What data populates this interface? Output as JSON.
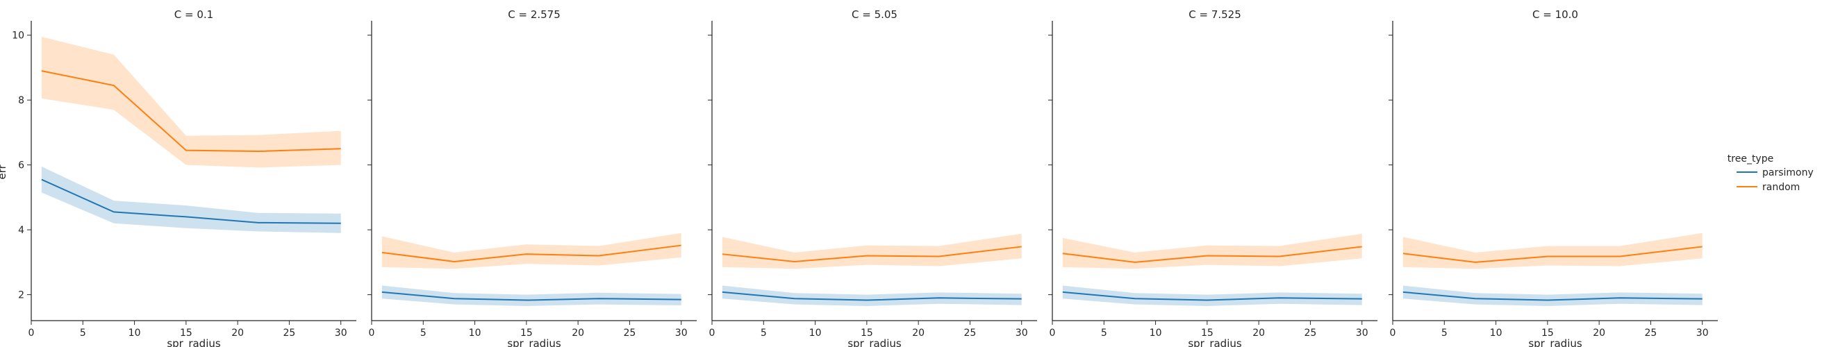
{
  "chart_data": {
    "type": "line",
    "facet_by": "C",
    "xlabel": "spr_radius",
    "ylabel": "err",
    "xlim": [
      0,
      31.5
    ],
    "ylim": [
      1.2,
      10.4
    ],
    "xticks": [
      0,
      5,
      10,
      15,
      20,
      25,
      30
    ],
    "yticks": [
      2,
      4,
      6,
      8,
      10
    ],
    "legend": {
      "title": "tree_type",
      "placement": "right",
      "entries": [
        "parsimony",
        "random"
      ]
    },
    "colors": {
      "parsimony": "#1f77b4",
      "random": "#ff7f0e"
    },
    "x": [
      1,
      8,
      15,
      22,
      30
    ],
    "panels": [
      {
        "title": "C = 0.1",
        "series": [
          {
            "name": "parsimony",
            "values": [
              5.55,
              4.55,
              4.4,
              4.22,
              4.2
            ],
            "ci_low": [
              5.15,
              4.2,
              4.05,
              3.95,
              3.9
            ],
            "ci_high": [
              5.95,
              4.9,
              4.75,
              4.52,
              4.5
            ]
          },
          {
            "name": "random",
            "values": [
              8.9,
              8.45,
              6.45,
              6.42,
              6.5
            ],
            "ci_low": [
              8.05,
              7.7,
              6.0,
              5.92,
              6.0
            ],
            "ci_high": [
              9.95,
              9.4,
              6.9,
              6.92,
              7.05
            ]
          }
        ]
      },
      {
        "title": "C = 2.575",
        "series": [
          {
            "name": "parsimony",
            "values": [
              2.08,
              1.88,
              1.83,
              1.88,
              1.85
            ],
            "ci_low": [
              1.88,
              1.7,
              1.65,
              1.7,
              1.67
            ],
            "ci_high": [
              2.28,
              2.05,
              2.0,
              2.06,
              2.02
            ]
          },
          {
            "name": "random",
            "values": [
              3.3,
              3.02,
              3.25,
              3.2,
              3.52
            ],
            "ci_low": [
              2.85,
              2.8,
              2.95,
              2.9,
              3.15
            ],
            "ci_high": [
              3.8,
              3.3,
              3.55,
              3.5,
              3.9
            ]
          }
        ]
      },
      {
        "title": "C = 5.05",
        "series": [
          {
            "name": "parsimony",
            "values": [
              2.08,
              1.88,
              1.83,
              1.9,
              1.87
            ],
            "ci_low": [
              1.88,
              1.7,
              1.65,
              1.72,
              1.68
            ],
            "ci_high": [
              2.28,
              2.05,
              2.0,
              2.07,
              2.03
            ]
          },
          {
            "name": "random",
            "values": [
              3.25,
              3.02,
              3.2,
              3.18,
              3.48
            ],
            "ci_low": [
              2.85,
              2.8,
              2.92,
              2.88,
              3.12
            ],
            "ci_high": [
              3.78,
              3.3,
              3.52,
              3.5,
              3.88
            ]
          }
        ]
      },
      {
        "title": "C = 7.525",
        "series": [
          {
            "name": "parsimony",
            "values": [
              2.08,
              1.88,
              1.83,
              1.9,
              1.87
            ],
            "ci_low": [
              1.88,
              1.7,
              1.65,
              1.72,
              1.68
            ],
            "ci_high": [
              2.28,
              2.05,
              2.0,
              2.07,
              2.03
            ]
          },
          {
            "name": "random",
            "values": [
              3.27,
              3.0,
              3.2,
              3.18,
              3.48
            ],
            "ci_low": [
              2.85,
              2.8,
              2.92,
              2.88,
              3.12
            ],
            "ci_high": [
              3.75,
              3.3,
              3.52,
              3.5,
              3.88
            ]
          }
        ]
      },
      {
        "title": "C = 10.0",
        "series": [
          {
            "name": "parsimony",
            "values": [
              2.08,
              1.88,
              1.83,
              1.9,
              1.87
            ],
            "ci_low": [
              1.88,
              1.7,
              1.65,
              1.72,
              1.68
            ],
            "ci_high": [
              2.28,
              2.05,
              2.0,
              2.07,
              2.03
            ]
          },
          {
            "name": "random",
            "values": [
              3.27,
              3.0,
              3.18,
              3.18,
              3.48
            ],
            "ci_low": [
              2.85,
              2.8,
              2.9,
              2.88,
              3.12
            ],
            "ci_high": [
              3.78,
              3.3,
              3.5,
              3.5,
              3.9
            ]
          }
        ]
      }
    ]
  }
}
